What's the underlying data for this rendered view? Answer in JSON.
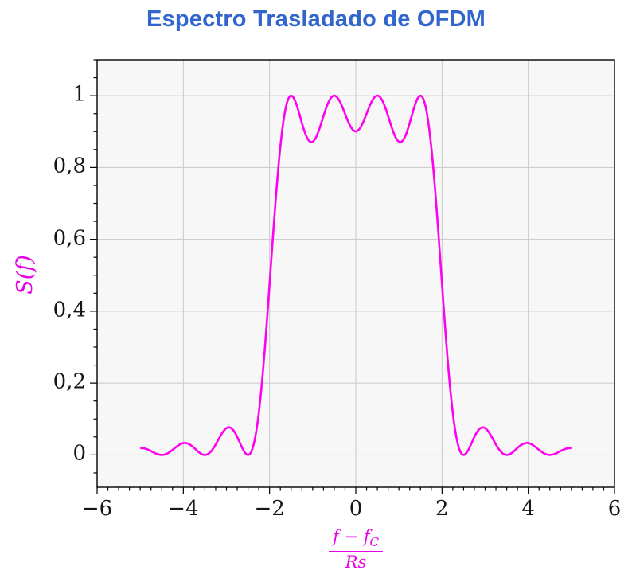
{
  "colors": {
    "title": "#3366cc",
    "curve": "#ff00f0",
    "axis_labels": "#e800e8",
    "tick_text": "#161616",
    "axis_line": "#000000",
    "grid_line": "#c9c9c9",
    "plot_background": "#f7f7f7"
  },
  "labels": {
    "ylabel": "S(f)",
    "xlabel_num_main": "f − f",
    "xlabel_num_sub": "C",
    "xlabel_den": "Rs"
  },
  "axes": {
    "x_tick_labels": [
      {
        "value": -6,
        "label": "−6"
      },
      {
        "value": -4,
        "label": "−4"
      },
      {
        "value": -2,
        "label": "−2"
      },
      {
        "value": 0,
        "label": "0"
      },
      {
        "value": 2,
        "label": "2"
      },
      {
        "value": 4,
        "label": "4"
      },
      {
        "value": 6,
        "label": "6"
      }
    ],
    "y_tick_labels": [
      {
        "value": 0,
        "label": "0"
      },
      {
        "value": 0.2,
        "label": "0,2"
      },
      {
        "value": 0.4,
        "label": "0,4"
      },
      {
        "value": 0.6,
        "label": "0,6"
      },
      {
        "value": 0.8,
        "label": "0,8"
      },
      {
        "value": 1,
        "label": "1"
      }
    ],
    "x_minor_step": 0.25,
    "y_minor_step": 0.05,
    "x_major_step": 2,
    "y_major_step": 0.2
  },
  "chart_data": {
    "type": "line",
    "title": "Espectro Trasladado de OFDM",
    "xlabel": "(f − f_C)/Rs",
    "ylabel": "S(f)",
    "xlim": [
      -6,
      6
    ],
    "ylim": [
      -0.09,
      1.1
    ],
    "grid": true,
    "legend": "none",
    "model": "OFDM baseband-shifted power spectrum: S(f) = sum of sinc^2(f - k) over subcarriers k",
    "subcarriers": [
      -1.5,
      -0.5,
      0.5,
      1.5
    ],
    "curve_x_range": [
      -5,
      5
    ],
    "series": [
      {
        "name": "S(f)",
        "x": [
          -5,
          -4.5,
          -4,
          -3.5,
          -3,
          -2.5,
          -2,
          -1.5,
          -1,
          -0.5,
          0,
          0.5,
          1,
          1.5,
          2,
          2.5,
          3,
          3.5,
          4,
          4.5,
          5
        ],
        "y": [
          0.019,
          0,
          0.033,
          0,
          0.075,
          0,
          0.475,
          1.0,
          0.872,
          1.0,
          0.901,
          1.0,
          0.872,
          1.0,
          0.475,
          0,
          0.075,
          0,
          0.033,
          0,
          0.019
        ]
      }
    ],
    "key_points": {
      "main_lobe_peaks": [
        {
          "x": -1.5,
          "y": 1.0
        },
        {
          "x": -0.5,
          "y": 1.0
        },
        {
          "x": 0.5,
          "y": 1.0
        },
        {
          "x": 1.5,
          "y": 1.0
        }
      ],
      "in_band_dips": [
        {
          "x": -1,
          "y": 0.872
        },
        {
          "x": 0,
          "y": 0.901
        },
        {
          "x": 1,
          "y": 0.872
        }
      ],
      "zeros": [
        -4.5,
        -3.5,
        -2.5,
        2.5,
        3.5,
        4.5
      ],
      "sidelobe_peaks": [
        {
          "x": -3,
          "y": 0.075
        },
        {
          "x": 3,
          "y": 0.075
        },
        {
          "x": -4,
          "y": 0.033
        },
        {
          "x": 4,
          "y": 0.033
        }
      ],
      "endpoints": [
        {
          "x": -5,
          "y": 0.019
        },
        {
          "x": 5,
          "y": 0.019
        }
      ]
    }
  }
}
